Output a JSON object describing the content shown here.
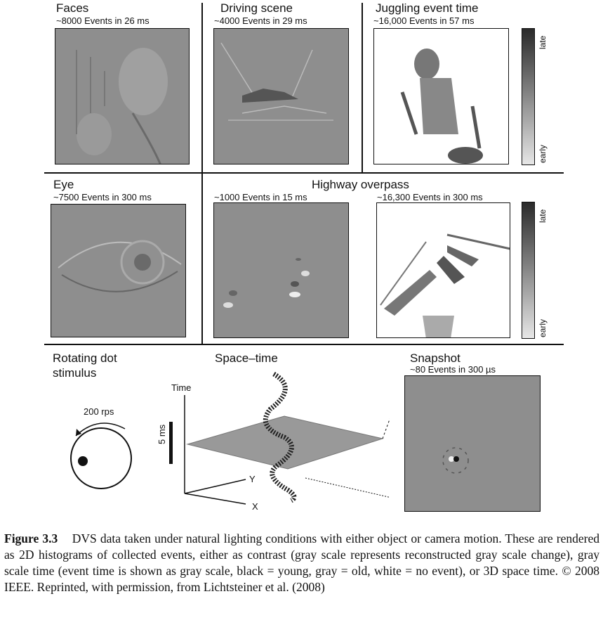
{
  "panels": {
    "faces": {
      "title": "Faces",
      "subtitle": "~8000 Events in 26 ms"
    },
    "driving": {
      "title": "Driving scene",
      "subtitle": "~4000 Events in 29 ms"
    },
    "juggling": {
      "title": "Juggling event time",
      "subtitle": "~16,000 Events in 57 ms",
      "cbar_top": "late",
      "cbar_bottom": "early"
    },
    "eye": {
      "title": "Eye",
      "subtitle": "~7500 Events in 300 ms"
    },
    "highway": {
      "title": "Highway overpass",
      "left_subtitle": "~1000 Events in 15 ms",
      "right_subtitle": "~16,300 Events in 300 ms",
      "cbar_top": "late",
      "cbar_bottom": "early"
    },
    "rotating": {
      "title_line1": "Rotating dot",
      "title_line2": "stimulus",
      "speed": "200 rps"
    },
    "spacetime": {
      "title": "Space–time",
      "axis_time": "Time",
      "axis_y": "Y",
      "axis_x": "X",
      "scale": "5 ms"
    },
    "snapshot": {
      "title": "Snapshot",
      "subtitle": "~80 Events in 300 µs"
    }
  },
  "caption": {
    "label": "Figure 3.3",
    "text": "DVS data taken under natural lighting conditions with either object or camera motion. These are rendered as 2D histograms of collected events, either as contrast (gray scale represents reconstructed gray scale change), gray scale time (event time is shown as gray scale, black = young, gray = old, white = no event), or 3D space time. © 2008 IEEE. Reprinted, with permission, from Lichtsteiner et al. (2008)"
  }
}
